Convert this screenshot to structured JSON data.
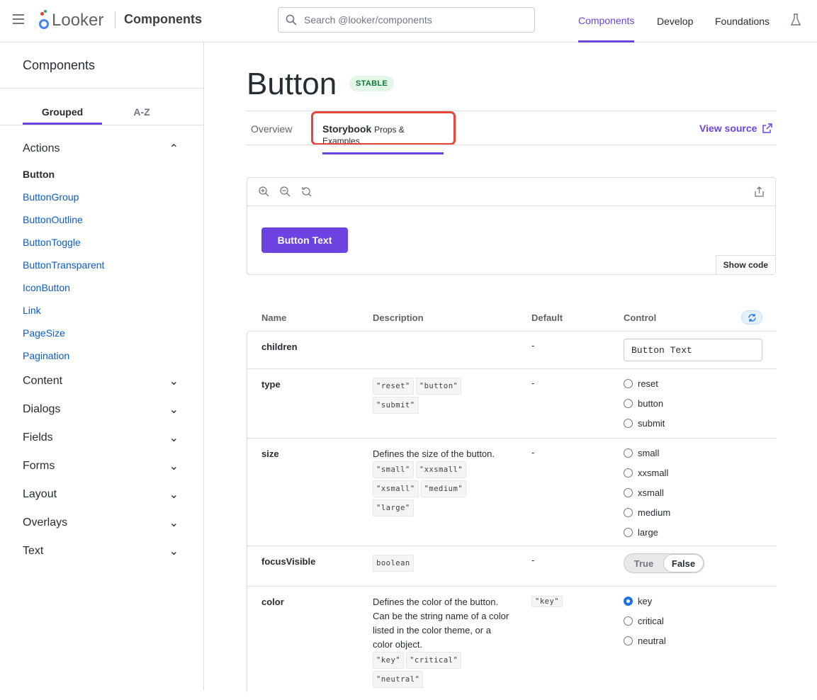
{
  "header": {
    "logo_text": "Looker",
    "title": "Components",
    "search_placeholder": "Search @looker/components",
    "nav": [
      {
        "label": "Components",
        "active": true
      },
      {
        "label": "Develop"
      },
      {
        "label": "Foundations"
      }
    ]
  },
  "sidebar": {
    "title": "Components",
    "tabs": [
      "Grouped",
      "A-Z"
    ],
    "groups": [
      {
        "label": "Actions",
        "expanded": true,
        "items": [
          "Button",
          "ButtonGroup",
          "ButtonOutline",
          "ButtonToggle",
          "ButtonTransparent",
          "IconButton",
          "Link",
          "PageSize",
          "Pagination"
        ]
      },
      {
        "label": "Content"
      },
      {
        "label": "Dialogs"
      },
      {
        "label": "Fields"
      },
      {
        "label": "Forms"
      },
      {
        "label": "Layout"
      },
      {
        "label": "Overlays"
      },
      {
        "label": "Text"
      }
    ]
  },
  "page": {
    "title": "Button",
    "badge": "STABLE",
    "tabs": {
      "overview": "Overview",
      "storybook": "Storybook",
      "storybook_sub": "Props & Examples"
    },
    "view_source": "View source",
    "preview": {
      "button_label": "Button Text",
      "show_code": "Show code"
    },
    "table": {
      "headers": [
        "Name",
        "Description",
        "Default",
        "Control"
      ],
      "rows": [
        {
          "name": "children",
          "default": "-",
          "control_value": "Button Text"
        },
        {
          "name": "type",
          "codes": [
            "\"reset\"",
            "\"button\"",
            "\"submit\""
          ],
          "default": "-",
          "options": [
            "reset",
            "button",
            "submit"
          ]
        },
        {
          "name": "size",
          "description": "Defines the size of the button.",
          "codes": [
            "\"small\"",
            "\"xxsmall\"",
            "\"xsmall\"",
            "\"medium\"",
            "\"large\""
          ],
          "default": "-",
          "options": [
            "small",
            "xxsmall",
            "xsmall",
            "medium",
            "large"
          ]
        },
        {
          "name": "focusVisible",
          "codes": [
            "boolean"
          ],
          "default": "-",
          "toggle": [
            "True",
            "False"
          ],
          "selected": "False"
        },
        {
          "name": "color",
          "description": "Defines the color of the button. Can be the string name of a color listed in the color theme, or a color object.",
          "codes": [
            "\"key\"",
            "\"critical\"",
            "\"neutral\""
          ],
          "default": "\"key\"",
          "options": [
            "key",
            "critical",
            "neutral"
          ],
          "selected": "key"
        }
      ]
    }
  },
  "colors": {
    "accent": "#6c43e0",
    "link": "#0c5cc4",
    "highlight": "#e5453a",
    "badge_bg": "#e4f5ea",
    "badge_text": "#0c7a38"
  }
}
